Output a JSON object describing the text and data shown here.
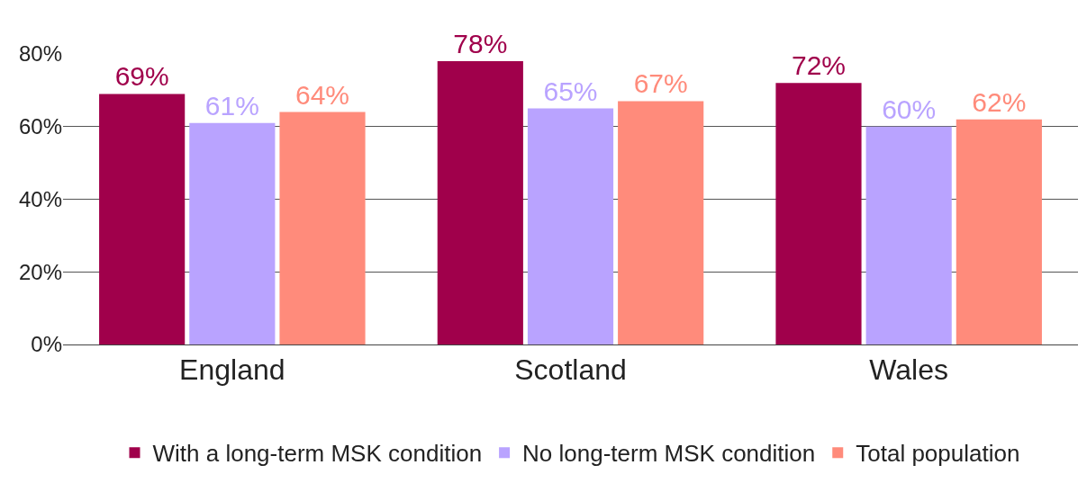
{
  "chart_data": {
    "type": "bar",
    "categories": [
      "England",
      "Scotland",
      "Wales"
    ],
    "series": [
      {
        "name": "With a long-term MSK condition",
        "color": "#a0004b",
        "values": [
          69,
          78,
          72
        ],
        "value_labels": [
          "69%",
          "78%",
          "72%"
        ]
      },
      {
        "name": "No long-term MSK condition",
        "color": "#b9a3ff",
        "values": [
          61,
          65,
          60
        ],
        "value_labels": [
          "61%",
          "65%",
          "60%"
        ]
      },
      {
        "name": "Total population",
        "color": "#ff8b7b",
        "values": [
          64,
          67,
          62
        ],
        "value_labels": [
          "64%",
          "67%",
          "62%"
        ]
      }
    ],
    "ylim": [
      0,
      80
    ],
    "yticks": [
      {
        "value": 0,
        "label": "0%"
      },
      {
        "value": 20,
        "label": "20%"
      },
      {
        "value": 40,
        "label": "40%"
      },
      {
        "value": 60,
        "label": "60%"
      },
      {
        "value": 80,
        "label": "80%"
      }
    ],
    "grid": "y",
    "legend": "bottom"
  }
}
